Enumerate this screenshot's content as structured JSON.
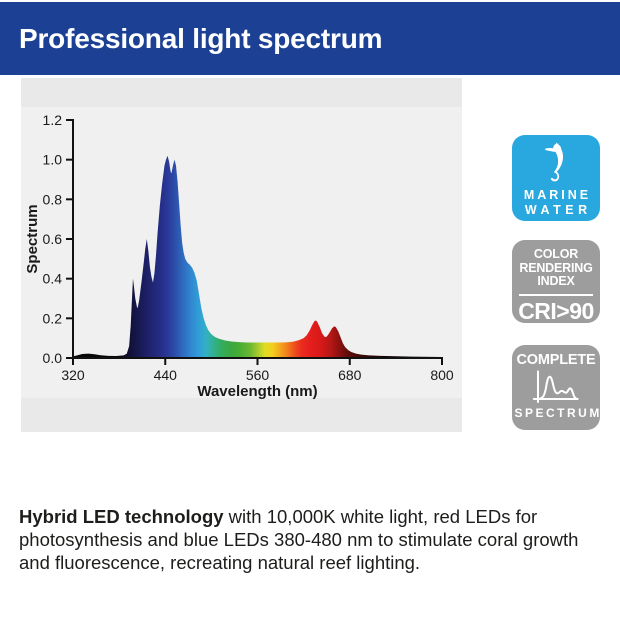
{
  "header": {
    "title": "Professional light spectrum",
    "bg_color": "#1b4094",
    "text_color": "#ffffff"
  },
  "chart_data": {
    "type": "area",
    "xlabel": "Wavelength (nm)",
    "ylabel": "Spectrum",
    "xlim": [
      320,
      800
    ],
    "ylim": [
      0,
      1.2
    ],
    "grid": false,
    "panel_bg": "#e9e9e9",
    "axis_color": "#111111",
    "tick_label_color": "#1a1a1a",
    "x_ticks": [
      {
        "v": 320,
        "label": "320"
      },
      {
        "v": 440,
        "label": "440"
      },
      {
        "v": 560,
        "label": "560"
      },
      {
        "v": 680,
        "label": "680"
      },
      {
        "v": 800,
        "label": "800"
      }
    ],
    "y_ticks": [
      {
        "v": 0.0,
        "label": "0.0"
      },
      {
        "v": 0.2,
        "label": "0.2"
      },
      {
        "v": 0.4,
        "label": "0.4"
      },
      {
        "v": 0.6,
        "label": "0.6"
      },
      {
        "v": 0.8,
        "label": "0.8"
      },
      {
        "v": 1.0,
        "label": "1.0"
      },
      {
        "v": 1.2,
        "label": "1.2"
      }
    ],
    "series": [
      {
        "name": "led-spectrum",
        "points": [
          [
            320,
            0.008
          ],
          [
            326,
            0.014
          ],
          [
            332,
            0.02
          ],
          [
            340,
            0.022
          ],
          [
            348,
            0.019
          ],
          [
            356,
            0.014
          ],
          [
            366,
            0.011
          ],
          [
            376,
            0.01
          ],
          [
            386,
            0.013
          ],
          [
            390,
            0.022
          ],
          [
            393,
            0.06
          ],
          [
            395,
            0.16
          ],
          [
            397,
            0.32
          ],
          [
            398,
            0.4
          ],
          [
            399,
            0.37
          ],
          [
            401,
            0.3
          ],
          [
            403,
            0.26
          ],
          [
            404,
            0.25
          ],
          [
            406,
            0.29
          ],
          [
            409,
            0.38
          ],
          [
            412,
            0.48
          ],
          [
            414,
            0.55
          ],
          [
            416,
            0.6
          ],
          [
            418,
            0.54
          ],
          [
            420,
            0.46
          ],
          [
            422,
            0.41
          ],
          [
            424,
            0.38
          ],
          [
            426,
            0.43
          ],
          [
            428,
            0.52
          ],
          [
            430,
            0.63
          ],
          [
            433,
            0.77
          ],
          [
            436,
            0.88
          ],
          [
            439,
            0.97
          ],
          [
            441,
            1.0
          ],
          [
            443,
            1.02
          ],
          [
            445,
            0.99
          ],
          [
            447,
            0.94
          ],
          [
            448,
            0.93
          ],
          [
            450,
            0.97
          ],
          [
            452,
            1.0
          ],
          [
            454,
            0.97
          ],
          [
            456,
            0.89
          ],
          [
            458,
            0.78
          ],
          [
            460,
            0.67
          ],
          [
            462,
            0.58
          ],
          [
            464,
            0.53
          ],
          [
            466,
            0.5
          ],
          [
            469,
            0.48
          ],
          [
            472,
            0.47
          ],
          [
            475,
            0.455
          ],
          [
            478,
            0.43
          ],
          [
            481,
            0.39
          ],
          [
            484,
            0.32
          ],
          [
            487,
            0.25
          ],
          [
            490,
            0.2
          ],
          [
            493,
            0.165
          ],
          [
            496,
            0.14
          ],
          [
            500,
            0.12
          ],
          [
            505,
            0.105
          ],
          [
            510,
            0.097
          ],
          [
            518,
            0.088
          ],
          [
            526,
            0.083
          ],
          [
            536,
            0.08
          ],
          [
            546,
            0.078
          ],
          [
            556,
            0.078
          ],
          [
            566,
            0.078
          ],
          [
            576,
            0.078
          ],
          [
            586,
            0.078
          ],
          [
            596,
            0.079
          ],
          [
            606,
            0.082
          ],
          [
            614,
            0.09
          ],
          [
            620,
            0.1
          ],
          [
            624,
            0.115
          ],
          [
            628,
            0.14
          ],
          [
            631,
            0.165
          ],
          [
            634,
            0.185
          ],
          [
            636,
            0.19
          ],
          [
            638,
            0.18
          ],
          [
            641,
            0.155
          ],
          [
            644,
            0.125
          ],
          [
            647,
            0.108
          ],
          [
            649,
            0.105
          ],
          [
            651,
            0.112
          ],
          [
            654,
            0.13
          ],
          [
            657,
            0.15
          ],
          [
            660,
            0.16
          ],
          [
            662,
            0.155
          ],
          [
            665,
            0.135
          ],
          [
            668,
            0.105
          ],
          [
            671,
            0.075
          ],
          [
            674,
            0.055
          ],
          [
            678,
            0.04
          ],
          [
            682,
            0.03
          ],
          [
            688,
            0.022
          ],
          [
            695,
            0.017
          ],
          [
            705,
            0.013
          ],
          [
            720,
            0.011
          ],
          [
            740,
            0.009
          ],
          [
            760,
            0.007
          ],
          [
            800,
            0.005
          ]
        ]
      }
    ],
    "gradient_stops": [
      {
        "wl": 320,
        "color": "#060606"
      },
      {
        "wl": 382,
        "color": "#0a0a10"
      },
      {
        "wl": 394,
        "color": "#100f33"
      },
      {
        "wl": 404,
        "color": "#171a52"
      },
      {
        "wl": 414,
        "color": "#1d2066"
      },
      {
        "wl": 424,
        "color": "#222878"
      },
      {
        "wl": 434,
        "color": "#262e89"
      },
      {
        "wl": 444,
        "color": "#2a3c9c"
      },
      {
        "wl": 454,
        "color": "#2c53ad"
      },
      {
        "wl": 464,
        "color": "#2e6ec0"
      },
      {
        "wl": 474,
        "color": "#3087cf"
      },
      {
        "wl": 484,
        "color": "#319dd8"
      },
      {
        "wl": 494,
        "color": "#32afc6"
      },
      {
        "wl": 504,
        "color": "#32b194"
      },
      {
        "wl": 514,
        "color": "#33ad62"
      },
      {
        "wl": 524,
        "color": "#3aa83f"
      },
      {
        "wl": 538,
        "color": "#46ac34"
      },
      {
        "wl": 550,
        "color": "#6cb733"
      },
      {
        "wl": 560,
        "color": "#a5c92e"
      },
      {
        "wl": 570,
        "color": "#dedc23"
      },
      {
        "wl": 578,
        "color": "#f2d01f"
      },
      {
        "wl": 588,
        "color": "#f4a81c"
      },
      {
        "wl": 598,
        "color": "#f2801c"
      },
      {
        "wl": 608,
        "color": "#ee4f1e"
      },
      {
        "wl": 618,
        "color": "#e92c1e"
      },
      {
        "wl": 628,
        "color": "#e61f1d"
      },
      {
        "wl": 642,
        "color": "#d81a19"
      },
      {
        "wl": 654,
        "color": "#b31614"
      },
      {
        "wl": 666,
        "color": "#8d1210"
      },
      {
        "wl": 676,
        "color": "#670d0b"
      },
      {
        "wl": 688,
        "color": "#470907"
      },
      {
        "wl": 702,
        "color": "#2c0505"
      },
      {
        "wl": 730,
        "color": "#150302"
      },
      {
        "wl": 800,
        "color": "#050101"
      }
    ]
  },
  "badges": {
    "marine_water": {
      "bg": "#29a7df",
      "icon": "seahorse-icon",
      "line1": "MARINE",
      "line2": "WATER"
    },
    "cri": {
      "bg": "#9d9d9d",
      "line1": "COLOR",
      "line2": "RENDERING",
      "line3": "INDEX",
      "value": "CRI>90"
    },
    "complete_spectrum": {
      "bg": "#9d9d9d",
      "icon": "spectrum-curve-icon",
      "top": "COMPLETE",
      "bottom": "SPECTRUM"
    }
  },
  "description": {
    "bold": "Hybrid LED technology",
    "rest": " with 10,000K white light, red LEDs for photosynthesis and blue LEDs 380-480 nm to stimulate coral growth and fluorescence, recreating natural reef lighting."
  }
}
